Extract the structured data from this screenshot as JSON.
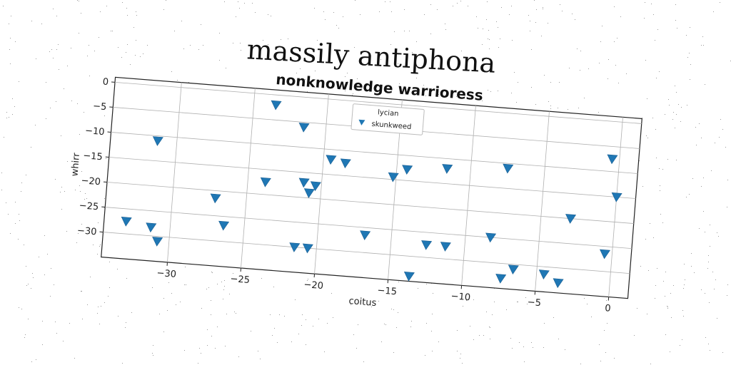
{
  "figure_title": "massily antiphona",
  "chart_data": {
    "type": "scatter",
    "title": "nonknowledge warrioress",
    "xlabel": "coitus",
    "ylabel": "whirr",
    "xlim": [
      -34.5,
      1.3
    ],
    "ylim": [
      -35,
      1
    ],
    "xticks": [
      -30,
      -25,
      -20,
      -15,
      -10,
      -5,
      0
    ],
    "yticks": [
      0,
      -5,
      -10,
      -15,
      -20,
      -25,
      -30
    ],
    "xtick_labels": [
      "−30",
      "−25",
      "−20",
      "−15",
      "−10",
      "−5",
      "0"
    ],
    "ytick_labels": [
      "0",
      "−5",
      "−10",
      "−15",
      "−20",
      "−25",
      "−30"
    ],
    "grid": true,
    "legend": {
      "placement": "upper-center",
      "title": "lycian",
      "entries": [
        "skunkweed"
      ]
    },
    "series": [
      {
        "name": "skunkweed",
        "marker": "triangle-down",
        "color": "#1f77b4",
        "x": [
          -23.5,
          -21.5,
          -31.3,
          -19.5,
          -18.5,
          -15.2,
          -14.3,
          -11.6,
          -7.5,
          -0.5,
          0.0,
          -23.8,
          -21.2,
          -20.4,
          -20.8,
          -27.1,
          -26.4,
          -33.0,
          -31.3,
          -30.8,
          -21.5,
          -20.6,
          -16.8,
          -12.6,
          -11.3,
          -8.3,
          -3.0,
          -0.5,
          -7.4,
          -6.6,
          -4.5,
          -3.5,
          -13.6
        ],
        "y": [
          -2.0,
          -6.0,
          -11.0,
          -12.0,
          -12.5,
          -14.5,
          -12.8,
          -12.0,
          -11.0,
          -7.5,
          -15.0,
          -17.5,
          -17.0,
          -17.5,
          -19.0,
          -21.5,
          -26.8,
          -27.5,
          -28.3,
          -31.0,
          -30.0,
          -30.0,
          -26.5,
          -27.5,
          -27.5,
          -25.0,
          -20.0,
          -26.5,
          -33.0,
          -31.0,
          -31.5,
          -33.0,
          -34.0
        ]
      }
    ]
  }
}
